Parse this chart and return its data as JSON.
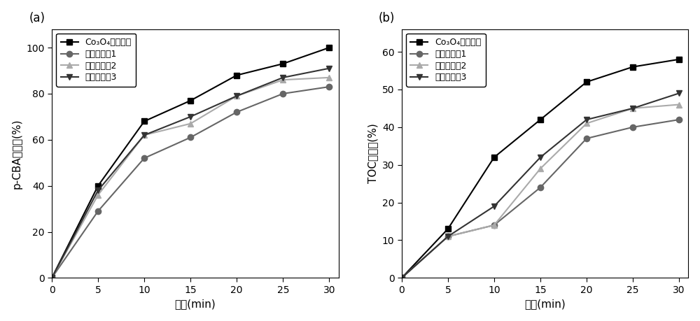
{
  "time": [
    0,
    5,
    10,
    15,
    20,
    25,
    30
  ],
  "panel_a": {
    "title": "(a)",
    "ylabel": "p-CBA去除率(%)",
    "xlabel": "时间(min)",
    "series": [
      {
        "label": "Co₃O₄基催化剑",
        "values": [
          0,
          40,
          68,
          77,
          88,
          93,
          100
        ],
        "color": "#000000",
        "marker": "s",
        "linestyle": "-"
      },
      {
        "label": "商品催化剑1",
        "values": [
          0,
          29,
          52,
          61,
          72,
          80,
          83
        ],
        "color": "#666666",
        "marker": "o",
        "linestyle": "-"
      },
      {
        "label": "商品催化剑2",
        "values": [
          0,
          36,
          62,
          67,
          79,
          86,
          87
        ],
        "color": "#aaaaaa",
        "marker": "^",
        "linestyle": "-"
      },
      {
        "label": "商品催化剑3",
        "values": [
          0,
          38,
          62,
          70,
          79,
          87,
          91
        ],
        "color": "#333333",
        "marker": "v",
        "linestyle": "-"
      }
    ],
    "ylim": [
      0,
      108
    ],
    "yticks": [
      0,
      20,
      40,
      60,
      80,
      100
    ],
    "xlim": [
      0,
      31
    ],
    "xticks": [
      0,
      5,
      10,
      15,
      20,
      25,
      30
    ]
  },
  "panel_b": {
    "title": "(b)",
    "ylabel": "TOC去除率(%)",
    "xlabel": "时间(min)",
    "series": [
      {
        "label": "Co₃O₄基催化剑",
        "values": [
          0,
          13,
          32,
          42,
          52,
          56,
          58
        ],
        "color": "#000000",
        "marker": "s",
        "linestyle": "-"
      },
      {
        "label": "商品催化剑1",
        "values": [
          0,
          11,
          14,
          24,
          37,
          40,
          42
        ],
        "color": "#666666",
        "marker": "o",
        "linestyle": "-"
      },
      {
        "label": "商品催化剑2",
        "values": [
          0,
          11,
          14,
          29,
          41,
          45,
          46
        ],
        "color": "#aaaaaa",
        "marker": "^",
        "linestyle": "-"
      },
      {
        "label": "商品催化剑3",
        "values": [
          0,
          11,
          19,
          32,
          42,
          45,
          49
        ],
        "color": "#333333",
        "marker": "v",
        "linestyle": "-"
      }
    ],
    "ylim": [
      0,
      66
    ],
    "yticks": [
      0,
      10,
      20,
      30,
      40,
      50,
      60
    ],
    "xlim": [
      0,
      31
    ],
    "xticks": [
      0,
      5,
      10,
      15,
      20,
      25,
      30
    ]
  },
  "legend_fontsize": 9,
  "axis_fontsize": 11,
  "tick_fontsize": 10,
  "marker_size": 6,
  "line_width": 1.5
}
